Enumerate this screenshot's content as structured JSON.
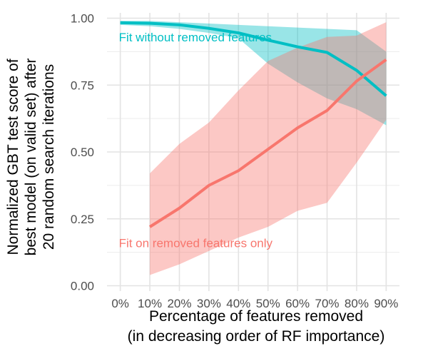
{
  "chart_data": {
    "type": "line",
    "title": "",
    "xlabel_lines": [
      "Percentage of features removed",
      "(in decreasing order of RF importance)"
    ],
    "ylabel_lines": [
      "Normalized GBT test score of",
      "best model (on valid set) after",
      "20 random search iterations"
    ],
    "x": [
      0,
      10,
      20,
      30,
      40,
      50,
      60,
      70,
      80,
      90
    ],
    "x_tick_labels": [
      "0%",
      "10%",
      "20%",
      "30%",
      "40%",
      "50%",
      "60%",
      "70%",
      "80%",
      "90%"
    ],
    "y_ticks": [
      0.0,
      0.25,
      0.5,
      0.75,
      1.0
    ],
    "y_tick_labels": [
      "0.00",
      "0.25",
      "0.50",
      "0.75",
      "1.00"
    ],
    "xlim": [
      -4.5,
      94.5
    ],
    "ylim": [
      -0.02,
      1.02
    ],
    "grid": true,
    "series": [
      {
        "name": "Fit without removed features",
        "color": "#00BFC4",
        "x": [
          0,
          10,
          20,
          30,
          40,
          50,
          60,
          70,
          80,
          90
        ],
        "values": [
          0.983,
          0.981,
          0.975,
          0.962,
          0.945,
          0.918,
          0.893,
          0.872,
          0.805,
          0.71
        ],
        "lower": [
          0.975,
          0.97,
          0.96,
          0.945,
          0.925,
          0.83,
          0.76,
          0.7,
          0.66,
          0.6
        ],
        "upper": [
          0.99,
          0.99,
          0.985,
          0.98,
          0.975,
          0.97,
          0.965,
          0.96,
          0.955,
          0.875
        ]
      },
      {
        "name": "Fit on removed features only",
        "color": "#F8766D",
        "x": [
          10,
          20,
          30,
          40,
          50,
          60,
          70,
          80,
          90
        ],
        "values": [
          0.22,
          0.29,
          0.375,
          0.43,
          0.51,
          0.59,
          0.655,
          0.765,
          0.845
        ],
        "lower": [
          0.04,
          0.08,
          0.13,
          0.18,
          0.22,
          0.28,
          0.31,
          0.46,
          0.62
        ],
        "upper": [
          0.42,
          0.53,
          0.61,
          0.73,
          0.84,
          0.89,
          0.93,
          0.935,
          0.985
        ]
      }
    ],
    "annotations": [
      {
        "text": "Fit without removed features",
        "series": 0,
        "x": -0.5,
        "y": 0.93
      },
      {
        "text": "Fit on removed features only",
        "series": 1,
        "x": -0.5,
        "y": 0.16
      }
    ]
  }
}
